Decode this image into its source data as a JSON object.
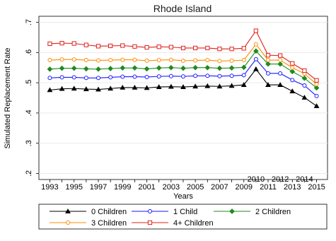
{
  "chart_data": {
    "type": "line",
    "title": "Rhode Island",
    "xlabel": "Years",
    "ylabel": "Simulated Replacement Rate",
    "x": [
      1993,
      1994,
      1995,
      1996,
      1997,
      1998,
      1999,
      2000,
      2001,
      2002,
      2003,
      2004,
      2005,
      2006,
      2007,
      2008,
      2009,
      2010,
      2011,
      2012,
      2013,
      2014,
      2015
    ],
    "xlim": [
      1992.1,
      2015.9
    ],
    "ylim": [
      0.18,
      0.72
    ],
    "xticks": [
      1993,
      1995,
      1997,
      1999,
      2001,
      2003,
      2005,
      2007,
      2009,
      2011,
      2013,
      2015
    ],
    "xticklabels": [
      "1993",
      "1995",
      "1997",
      "1999",
      "2001",
      "2003",
      "2005",
      "2007",
      "2009",
      "2011",
      "2013",
      "2015"
    ],
    "xticks_row2": [
      1994,
      1996,
      1998,
      2000,
      2002,
      2004,
      2006,
      2008,
      2010,
      2012,
      2014
    ],
    "xticklabels_row2": [
      "",
      "",
      "",
      "",
      "",
      "",
      "",
      "",
      "2010",
      "2012",
      "2014"
    ],
    "yticks": [
      0.2,
      0.3,
      0.4,
      0.5,
      0.6,
      0.7
    ],
    "yticklabels": [
      ".2",
      ".3",
      ".4",
      ".5",
      ".6",
      ".7"
    ],
    "grid": true,
    "legend_position": "bottom",
    "series": [
      {
        "name": "0 Children",
        "color": "#000000",
        "marker": "triangle",
        "values": [
          0.476,
          0.48,
          0.481,
          0.479,
          0.478,
          0.481,
          0.484,
          0.484,
          0.483,
          0.486,
          0.487,
          0.486,
          0.488,
          0.489,
          0.488,
          0.49,
          0.493,
          0.545,
          0.493,
          0.493,
          0.472,
          0.451,
          0.423
        ]
      },
      {
        "name": "1 Child",
        "color": "#1a1aff",
        "marker": "circle",
        "values": [
          0.516,
          0.518,
          0.518,
          0.516,
          0.516,
          0.518,
          0.52,
          0.52,
          0.519,
          0.521,
          0.522,
          0.521,
          0.523,
          0.523,
          0.522,
          0.523,
          0.525,
          0.578,
          0.531,
          0.531,
          0.509,
          0.491,
          0.456
        ]
      },
      {
        "name": "2 Children",
        "color": "#1e8a1e",
        "marker": "diamond",
        "values": [
          0.545,
          0.548,
          0.548,
          0.546,
          0.545,
          0.547,
          0.549,
          0.549,
          0.546,
          0.549,
          0.55,
          0.548,
          0.55,
          0.55,
          0.548,
          0.549,
          0.551,
          0.605,
          0.562,
          0.562,
          0.537,
          0.515,
          0.483
        ]
      },
      {
        "name": "3 Children",
        "color": "#ff8c00",
        "marker": "circle",
        "values": [
          0.575,
          0.577,
          0.577,
          0.575,
          0.574,
          0.575,
          0.576,
          0.576,
          0.573,
          0.575,
          0.576,
          0.573,
          0.574,
          0.575,
          0.572,
          0.573,
          0.575,
          0.627,
          0.575,
          0.575,
          0.55,
          0.53,
          0.495
        ]
      },
      {
        "name": "4+ Children",
        "color": "#e0201a",
        "marker": "square",
        "values": [
          0.629,
          0.631,
          0.63,
          0.625,
          0.621,
          0.622,
          0.623,
          0.62,
          0.617,
          0.619,
          0.618,
          0.615,
          0.615,
          0.615,
          0.612,
          0.612,
          0.614,
          0.672,
          0.591,
          0.59,
          0.564,
          0.54,
          0.508
        ]
      }
    ]
  }
}
